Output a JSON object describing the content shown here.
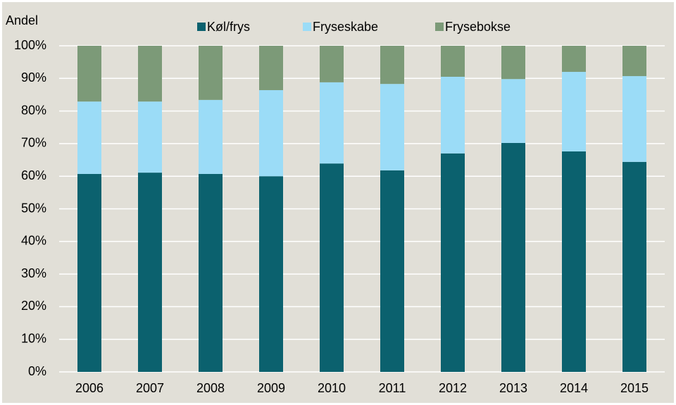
{
  "chart_data": {
    "type": "stacked-bar",
    "y_label": "Andel",
    "categories": [
      "2006",
      "2007",
      "2008",
      "2009",
      "2010",
      "2011",
      "2012",
      "2013",
      "2014",
      "2015"
    ],
    "series": [
      {
        "name": "Køl/frys",
        "color": "#0b616e",
        "values": [
          60.7,
          61.1,
          60.7,
          60.0,
          63.9,
          61.8,
          67.0,
          70.2,
          67.6,
          64.4
        ]
      },
      {
        "name": "Fryseskabe",
        "color": "#9bdcf7",
        "values": [
          22.2,
          21.8,
          22.7,
          26.4,
          24.9,
          26.5,
          23.5,
          19.6,
          24.4,
          26.3
        ]
      },
      {
        "name": "Frysebokse",
        "color": "#7c9a78",
        "values": [
          17.1,
          17.1,
          16.6,
          13.6,
          11.2,
          11.7,
          9.5,
          10.2,
          8.0,
          9.3
        ]
      }
    ],
    "ylim": [
      0,
      100
    ],
    "yticks": [
      {
        "value": 0,
        "label": "0%"
      },
      {
        "value": 10,
        "label": "10%"
      },
      {
        "value": 20,
        "label": "20%"
      },
      {
        "value": 30,
        "label": "30%"
      },
      {
        "value": 40,
        "label": "40%"
      },
      {
        "value": 50,
        "label": "50%"
      },
      {
        "value": 60,
        "label": "60%"
      },
      {
        "value": 70,
        "label": "70%"
      },
      {
        "value": 80,
        "label": "80%"
      },
      {
        "value": 90,
        "label": "90%"
      },
      {
        "value": 100,
        "label": "100%"
      }
    ],
    "grid": true
  }
}
